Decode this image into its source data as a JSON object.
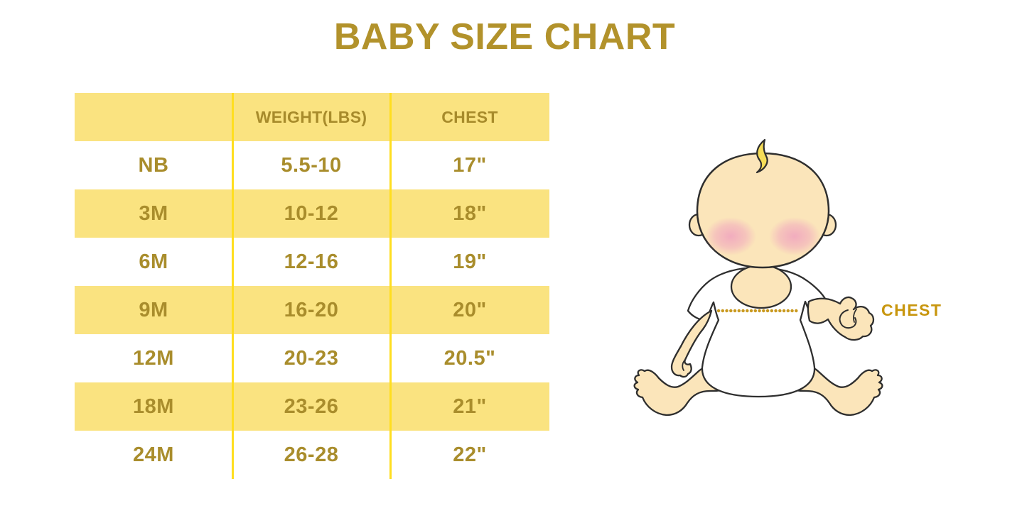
{
  "page": {
    "title": "BABY SIZE CHART"
  },
  "chart_data": {
    "type": "table",
    "title": "BABY SIZE CHART",
    "columns": [
      "",
      "WEIGHT(LBS)",
      "CHEST"
    ],
    "rows": [
      [
        "NB",
        "5.5-10",
        "17\""
      ],
      [
        "3M",
        "10-12",
        "18\""
      ],
      [
        "6M",
        "12-16",
        "19\""
      ],
      [
        "9M",
        "16-20",
        "20\""
      ],
      [
        "12M",
        "20-23",
        "20.5\""
      ],
      [
        "18M",
        "23-26",
        "21\""
      ],
      [
        "24M",
        "26-28",
        "22\""
      ]
    ],
    "layout": {
      "header_background": "#FAE380",
      "alternating_rows": "yellow/white starting with white after header",
      "column_dividers": true
    }
  },
  "illustration": {
    "figure": "sitting-baby",
    "chest_label": "CHEST"
  },
  "colors": {
    "background": "#FFFFFF",
    "title_text": "#B2922B",
    "table_text": "#A98D2C",
    "row_yellow": "#FAE380",
    "divider_yellow": "#FFDE1F",
    "chest_label_gold": "#C8960E",
    "dotted_line_gold": "#C9991F",
    "baby_skin": "#FBE5BA",
    "baby_hair": "#F6DD58",
    "baby_cheek": "#F1A9BE",
    "baby_outline": "#2E2E2E"
  }
}
